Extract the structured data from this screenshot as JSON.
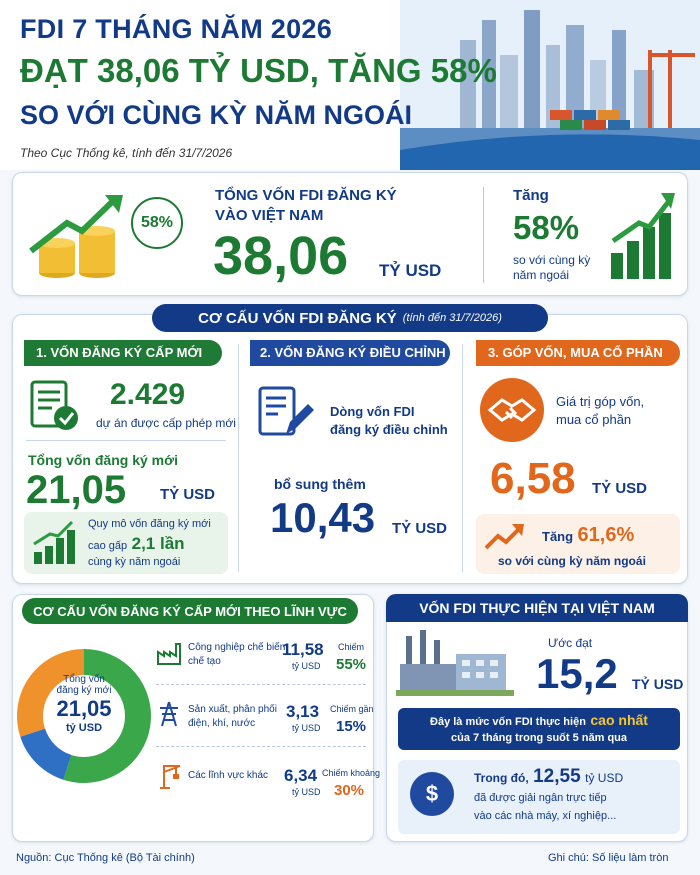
{
  "header": {
    "title_line1": "FDI 7 THÁNG NĂM 2026",
    "title_line2": "ĐẠT 38,06 TỶ USD, TĂNG 58%",
    "title_line3": "SO VỚI CÙNG KỲ NĂM NGOÁI",
    "source_note": "Theo Cục Thống kê, tính đến 31/7/2026"
  },
  "summary": {
    "badge": "58%",
    "label_line1": "TỔNG VỐN FDI ĐĂNG KÝ",
    "label_line2": "VÀO VIỆT NAM",
    "value": "38,06",
    "unit": "TỶ USD",
    "increase_label": "Tăng",
    "increase_value": "58%",
    "increase_note_line1": "so với cùng kỳ",
    "increase_note_line2": "năm ngoái"
  },
  "structure": {
    "title": "CƠ CẤU VỐN FDI ĐĂNG KÝ",
    "title_note": "(tính đến 31/7/2026)",
    "new_capital": {
      "heading": "1. VỐN ĐĂNG KÝ CẤP MỚI",
      "projects_value": "2.429",
      "projects_label": "dự án được cấp phép mới",
      "total_label": "Tổng vốn đăng ký mới",
      "total_value": "21,05",
      "total_unit": "TỶ USD",
      "scale_line1": "Quy mô vốn đăng ký mới",
      "scale_prefix": "cao gấp",
      "scale_value": "2,1 lần",
      "scale_line3": "cùng kỳ năm ngoái"
    },
    "adjusted_capital": {
      "heading": "2. VỐN ĐĂNG KÝ ĐIỀU CHỈNH",
      "desc_line1": "Dòng vốn FDI",
      "desc_line2": "đăng ký điều chỉnh",
      "extra_label": "bổ sung thêm",
      "value": "10,43",
      "unit": "TỶ USD"
    },
    "share_purchase": {
      "heading": "3. GÓP VỐN, MUA CỔ PHẦN",
      "desc_line1": "Giá trị góp vốn,",
      "desc_line2": "mua cổ phần",
      "value": "6,58",
      "unit": "TỶ USD",
      "increase_label": "Tăng",
      "increase_value": "61,6%",
      "increase_note": "so với cùng kỳ năm ngoái"
    }
  },
  "sector": {
    "title": "CƠ CẤU VỐN ĐĂNG KÝ CẤP MỚI THEO LĨNH VỰC",
    "center_line1": "Tổng vốn",
    "center_line2": "đăng ký mới",
    "center_value": "21,05",
    "center_unit": "tỷ USD",
    "items": [
      {
        "name_line1": "Công nghiệp chế biến,",
        "name_line2": "chế tạo",
        "value": "11,58",
        "unit": "tỷ USD",
        "share_label": "Chiếm",
        "share": "55%",
        "color": "#3aa84a"
      },
      {
        "name_line1": "Sản xuất, phân phối",
        "name_line2": "điện, khí, nước",
        "value": "3,13",
        "unit": "tỷ USD",
        "share_label": "Chiếm gần",
        "share": "15%",
        "color": "#2f6fc4"
      },
      {
        "name_line1": "Các lĩnh vực khác",
        "name_line2": "",
        "value": "6,34",
        "unit": "tỷ USD",
        "share_label": "Chiếm khoảng",
        "share": "30%",
        "color": "#f0922b"
      }
    ]
  },
  "implemented": {
    "title": "VỐN FDI THỰC HIỆN TẠI VIỆT NAM",
    "estimate_label": "Ước đạt",
    "value": "15,2",
    "unit": "TỶ USD",
    "highlight_prefix": "Đây là mức vốn FDI thực hiện",
    "highlight_emph": "cao nhất",
    "highlight_line2": "của 7 tháng trong suốt 5 năm qua",
    "disbursed_prefix": "Trong đó,",
    "disbursed_value": "12,55",
    "disbursed_unit": "tỷ USD",
    "disbursed_line2": "đã được giải ngân trực tiếp",
    "disbursed_line3": "vào các nhà máy, xí nghiệp..."
  },
  "footer": {
    "source": "Nguồn: Cục Thống kê (Bộ Tài chính)",
    "note": "Ghi chú: Số liệu làm tròn"
  }
}
